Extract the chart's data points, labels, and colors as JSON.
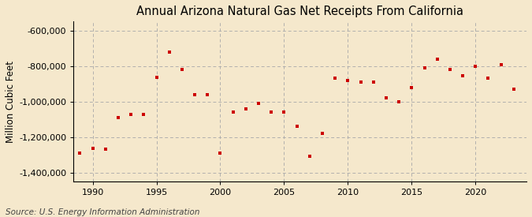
{
  "title": "Annual Arizona Natural Gas Net Receipts From California",
  "ylabel": "Million Cubic Feet",
  "source": "Source: U.S. Energy Information Administration",
  "background_color": "#f5e8cc",
  "marker_color": "#cc0000",
  "years": [
    1989,
    1990,
    1991,
    1992,
    1993,
    1994,
    1995,
    1996,
    1997,
    1998,
    1999,
    2000,
    2001,
    2002,
    2003,
    2004,
    2005,
    2006,
    2007,
    2008,
    2009,
    2010,
    2011,
    2012,
    2013,
    2014,
    2015,
    2016,
    2017,
    2018,
    2019,
    2020,
    2021,
    2022,
    2023
  ],
  "values": [
    -1290000,
    -1265000,
    -1270000,
    -1090000,
    -1075000,
    -1075000,
    -865000,
    -720000,
    -820000,
    -960000,
    -960000,
    -1290000,
    -1060000,
    -1040000,
    -1010000,
    -1060000,
    -1060000,
    -1140000,
    -1310000,
    -1180000,
    -870000,
    -880000,
    -890000,
    -890000,
    -980000,
    -1000000,
    -920000,
    -810000,
    -760000,
    -820000,
    -855000,
    -800000,
    -870000,
    -795000,
    -930000
  ],
  "ylim": [
    -1450000,
    -550000
  ],
  "yticks": [
    -1400000,
    -1200000,
    -1000000,
    -800000,
    -600000
  ],
  "xlim": [
    1988.5,
    2024
  ],
  "xticks": [
    1990,
    1995,
    2000,
    2005,
    2010,
    2015,
    2020
  ],
  "title_fontsize": 10.5,
  "label_fontsize": 8.5,
  "tick_fontsize": 8,
  "source_fontsize": 7.5
}
